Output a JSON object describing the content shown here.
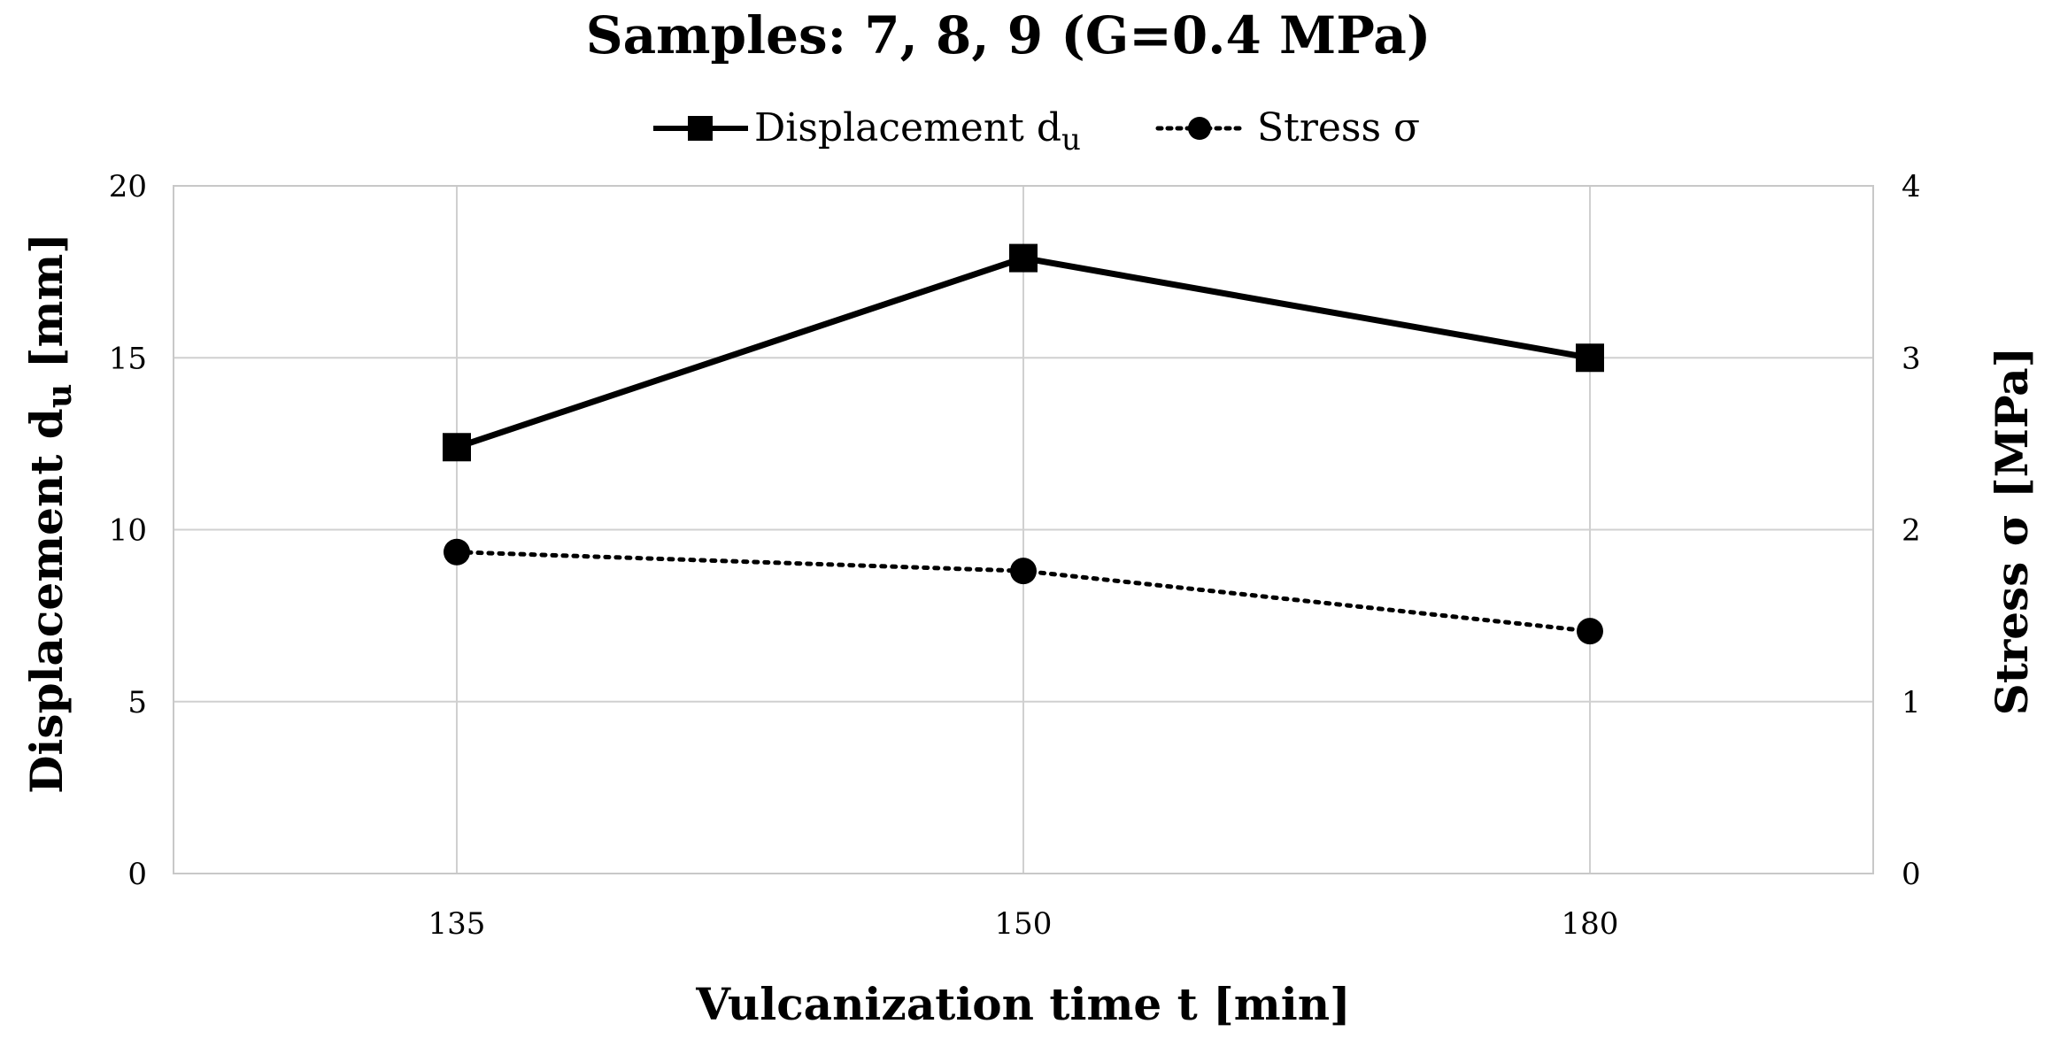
{
  "chart_data": {
    "type": "line",
    "title": "Samples: 7, 8, 9 (G=0.4 MPa)",
    "xlabel": "Vulcanization time t [min]",
    "categories": [
      "135",
      "150",
      "180"
    ],
    "y_left": {
      "label_main": "Displacement d",
      "label_sub": "u",
      "label_unit": " [mm]",
      "min": 0,
      "max": 20,
      "ticks": [
        "0",
        "5",
        "10",
        "15",
        "20"
      ]
    },
    "y_right": {
      "label": "Stress σ [MPa]",
      "min": 0,
      "max": 4,
      "ticks": [
        "0",
        "1",
        "2",
        "3",
        "4"
      ]
    },
    "series": [
      {
        "name_main": "Displacement d",
        "name_sub": "u",
        "axis": "left",
        "style": "solid",
        "marker": "square",
        "color": "#000000",
        "values": [
          12.4,
          17.9,
          15.0
        ]
      },
      {
        "name_main": "Stress σ",
        "name_sub": "",
        "axis": "right",
        "style": "dotted",
        "marker": "circle",
        "color": "#000000",
        "values": [
          1.87,
          1.76,
          1.41
        ]
      }
    ]
  }
}
